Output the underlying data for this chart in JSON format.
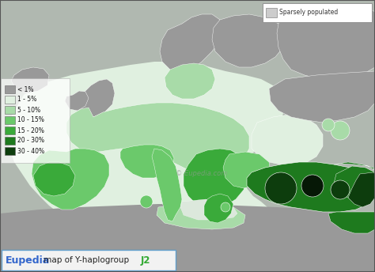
{
  "title_eupedia": "Eupedia",
  "title_rest": " map of Y-haplogroup ",
  "title_j2": "J2",
  "title_eupedia_color": "#3366cc",
  "title_rest_color": "#222222",
  "title_j2_color": "#33aa33",
  "legend_items": [
    {
      "label": "< 1%",
      "color": "#999999"
    },
    {
      "label": "1 - 5%",
      "color": "#e0f0e0"
    },
    {
      "label": "5 - 10%",
      "color": "#a8dba8"
    },
    {
      "label": "10 - 15%",
      "color": "#6bc96b"
    },
    {
      "label": "15 - 20%",
      "color": "#3aaa3a"
    },
    {
      "label": "20 - 30%",
      "color": "#1e7a1e"
    },
    {
      "label": "30 - 40%",
      "color": "#0d3d0d"
    }
  ],
  "sparsely_label": "Sparsely populated",
  "sparsely_color": "#cccccc",
  "watermark": "© Eupedia.com",
  "outer_bg": "#9aaa9a",
  "map_gray_bg": "#b0b8b0",
  "ocean_color": "#c8d4c8",
  "border_color": "#777777"
}
